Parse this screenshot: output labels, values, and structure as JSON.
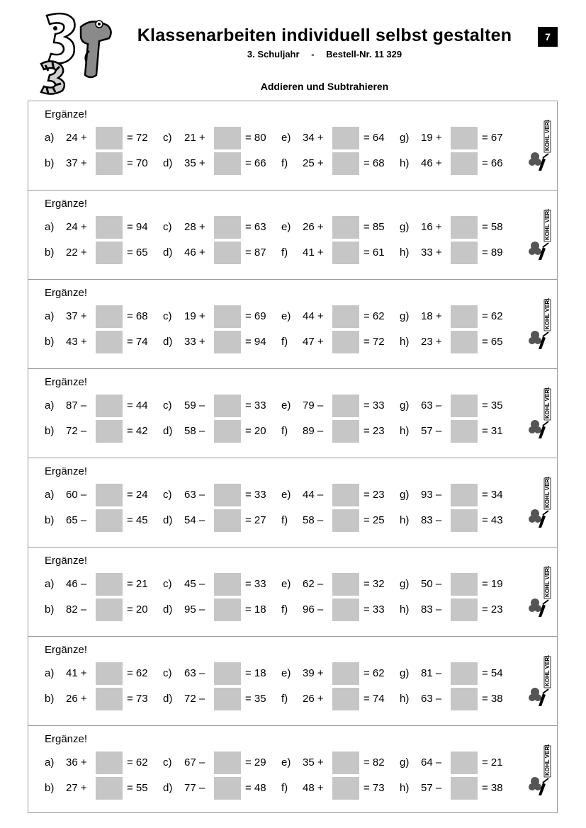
{
  "header": {
    "title": "Klassenarbeiten individuell selbst gestalten",
    "grade": "3. Schuljahr",
    "separator": "-",
    "order": "Bestell-Nr. 11 329",
    "page_number": "7",
    "topic": "Addieren und Subtrahieren"
  },
  "publisher_mark": "KOHL VERLAG",
  "blocks": [
    {
      "title": "Ergänze!",
      "problems": [
        {
          "label": "a)",
          "lhs": "24 +",
          "rhs": "= 72"
        },
        {
          "label": "c)",
          "lhs": "21 +",
          "rhs": "= 80"
        },
        {
          "label": "e)",
          "lhs": "34 +",
          "rhs": "= 64"
        },
        {
          "label": "g)",
          "lhs": "19 +",
          "rhs": "= 67"
        },
        {
          "label": "b)",
          "lhs": "37 +",
          "rhs": "= 70"
        },
        {
          "label": "d)",
          "lhs": "35 +",
          "rhs": "= 66"
        },
        {
          "label": "f)",
          "lhs": "25 +",
          "rhs": "= 68"
        },
        {
          "label": "h)",
          "lhs": "46 +",
          "rhs": "= 66"
        }
      ]
    },
    {
      "title": "Ergänze!",
      "problems": [
        {
          "label": "a)",
          "lhs": "24 +",
          "rhs": "= 94"
        },
        {
          "label": "c)",
          "lhs": "28 +",
          "rhs": "= 63"
        },
        {
          "label": "e)",
          "lhs": "26 +",
          "rhs": "= 85"
        },
        {
          "label": "g)",
          "lhs": "16 +",
          "rhs": "= 58"
        },
        {
          "label": "b)",
          "lhs": "22 +",
          "rhs": "= 65"
        },
        {
          "label": "d)",
          "lhs": "46 +",
          "rhs": "= 87"
        },
        {
          "label": "f)",
          "lhs": "41 +",
          "rhs": "= 61"
        },
        {
          "label": "h)",
          "lhs": "33 +",
          "rhs": "= 89"
        }
      ]
    },
    {
      "title": "Ergänze!",
      "problems": [
        {
          "label": "a)",
          "lhs": "37 +",
          "rhs": "= 68"
        },
        {
          "label": "c)",
          "lhs": "19 +",
          "rhs": "= 69"
        },
        {
          "label": "e)",
          "lhs": "44 +",
          "rhs": "= 62"
        },
        {
          "label": "g)",
          "lhs": "18 +",
          "rhs": "= 62"
        },
        {
          "label": "b)",
          "lhs": "43 +",
          "rhs": "= 74"
        },
        {
          "label": "d)",
          "lhs": "33 +",
          "rhs": "= 94"
        },
        {
          "label": "f)",
          "lhs": "47 +",
          "rhs": "= 72"
        },
        {
          "label": "h)",
          "lhs": "23 +",
          "rhs": "= 65"
        }
      ]
    },
    {
      "title": "Ergänze!",
      "problems": [
        {
          "label": "a)",
          "lhs": "87 –",
          "rhs": "= 44"
        },
        {
          "label": "c)",
          "lhs": "59 –",
          "rhs": "= 33"
        },
        {
          "label": "e)",
          "lhs": "79 –",
          "rhs": "= 33"
        },
        {
          "label": "g)",
          "lhs": "63 –",
          "rhs": "= 35"
        },
        {
          "label": "b)",
          "lhs": "72 –",
          "rhs": "= 42"
        },
        {
          "label": "d)",
          "lhs": "58 –",
          "rhs": "= 20"
        },
        {
          "label": "f)",
          "lhs": "89 –",
          "rhs": "= 23"
        },
        {
          "label": "h)",
          "lhs": "57 –",
          "rhs": "= 31"
        }
      ]
    },
    {
      "title": "Ergänze!",
      "problems": [
        {
          "label": "a)",
          "lhs": "60 –",
          "rhs": "= 24"
        },
        {
          "label": "c)",
          "lhs": "63 –",
          "rhs": "= 33"
        },
        {
          "label": "e)",
          "lhs": "44 –",
          "rhs": "= 23"
        },
        {
          "label": "g)",
          "lhs": "93 –",
          "rhs": "= 34"
        },
        {
          "label": "b)",
          "lhs": "65 –",
          "rhs": "= 45"
        },
        {
          "label": "d)",
          "lhs": "54 –",
          "rhs": "= 27"
        },
        {
          "label": "f)",
          "lhs": "58 –",
          "rhs": "= 25"
        },
        {
          "label": "h)",
          "lhs": "83 –",
          "rhs": "= 43"
        }
      ]
    },
    {
      "title": "Ergänze!",
      "problems": [
        {
          "label": "a)",
          "lhs": "46 –",
          "rhs": "= 21"
        },
        {
          "label": "c)",
          "lhs": "45 –",
          "rhs": "= 33"
        },
        {
          "label": "e)",
          "lhs": "62 –",
          "rhs": "= 32"
        },
        {
          "label": "g)",
          "lhs": "50 –",
          "rhs": "= 19"
        },
        {
          "label": "b)",
          "lhs": "82 –",
          "rhs": "= 20"
        },
        {
          "label": "d)",
          "lhs": "95 –",
          "rhs": "= 18"
        },
        {
          "label": "f)",
          "lhs": "96 –",
          "rhs": "= 33"
        },
        {
          "label": "h)",
          "lhs": "83 –",
          "rhs": "= 23"
        }
      ]
    },
    {
      "title": "Ergänze!",
      "problems": [
        {
          "label": "a)",
          "lhs": "41 +",
          "rhs": "= 62"
        },
        {
          "label": "c)",
          "lhs": "63 –",
          "rhs": "= 18"
        },
        {
          "label": "e)",
          "lhs": "39 +",
          "rhs": "= 62"
        },
        {
          "label": "g)",
          "lhs": "81 –",
          "rhs": "= 54"
        },
        {
          "label": "b)",
          "lhs": "26 +",
          "rhs": "= 73"
        },
        {
          "label": "d)",
          "lhs": "72 –",
          "rhs": "= 35"
        },
        {
          "label": "f)",
          "lhs": "26 +",
          "rhs": "= 74"
        },
        {
          "label": "h)",
          "lhs": "63 –",
          "rhs": "= 38"
        }
      ]
    },
    {
      "title": "Ergänze!",
      "problems": [
        {
          "label": "a)",
          "lhs": "36 +",
          "rhs": "= 62"
        },
        {
          "label": "c)",
          "lhs": "67 –",
          "rhs": "= 29"
        },
        {
          "label": "e)",
          "lhs": "35 +",
          "rhs": "= 82"
        },
        {
          "label": "g)",
          "lhs": "64 –",
          "rhs": "= 21"
        },
        {
          "label": "b)",
          "lhs": "27 +",
          "rhs": "= 55"
        },
        {
          "label": "d)",
          "lhs": "77 –",
          "rhs": "= 48"
        },
        {
          "label": "f)",
          "lhs": "48 +",
          "rhs": "= 73"
        },
        {
          "label": "h)",
          "lhs": "57 –",
          "rhs": "= 38"
        }
      ]
    }
  ]
}
